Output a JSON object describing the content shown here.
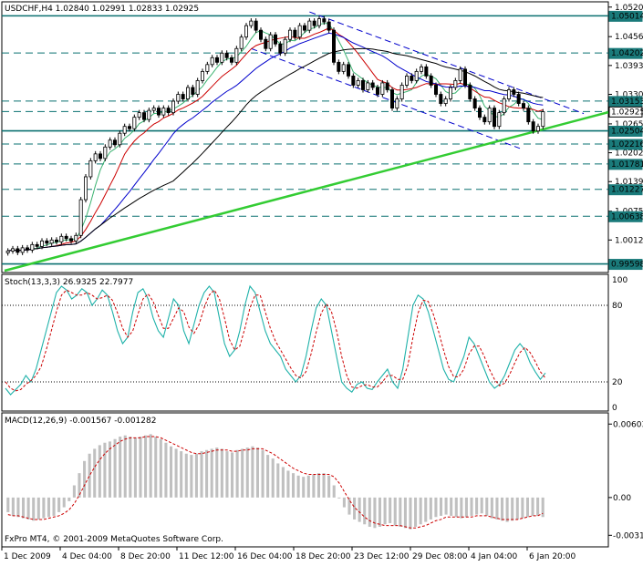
{
  "colors": {
    "background": "#ffffff",
    "grid": "#000000",
    "bull_body": "#ffffff",
    "bear_body": "#000000",
    "candle_outline": "#000000",
    "ma_fast": "#3cb371",
    "ma_mid": "#cc0000",
    "ma_slow": "#0000cc",
    "ma_long": "#000000",
    "support_line": "#33cc33",
    "level_line": "#0a7070",
    "channel_line": "#0000cc",
    "stoch_main": "#20b2aa",
    "stoch_signal": "#cc0000",
    "macd_hist": "#c0c0c0",
    "macd_signal": "#cc0000",
    "price_box_dark": "#1a7a7a",
    "price_box_current": "#ffffff"
  },
  "main_panel": {
    "header": "USDCHF,H4  1.02840 1.02991 1.02833 1.02925",
    "price_labels": [
      "1.05205",
      "1.04560",
      "1.03930",
      "1.03300",
      "1.02655",
      "1.02025",
      "1.01395",
      "1.00750",
      "1.00120"
    ],
    "level_boxes": [
      "1.05014",
      "1.04202",
      "1.03153",
      "1.02925",
      "1.02504",
      "1.02216",
      "1.01781",
      "1.01227",
      "1.00638",
      "0.99598"
    ],
    "current_price": "1.02925"
  },
  "stoch_panel": {
    "header": "Stoch(13,3,3) 26.9325 22.7977",
    "labels": [
      "100",
      "80",
      "20",
      "0"
    ]
  },
  "macd_panel": {
    "header": "MACD(12,26,9) -0.001567 -0.001282",
    "labels": [
      "0.00603",
      "0.00",
      "-0.00310"
    ]
  },
  "footer": {
    "copyright": "FxPro MT4, © 2001-2009 MetaQuotes Software Corp."
  },
  "time_labels": [
    "1 Dec 2009",
    "4 Dec 04:00",
    "8 Dec 20:00",
    "11 Dec 12:00",
    "16 Dec 04:00",
    "18 Dec 20:00",
    "23 Dec 12:00",
    "29 Dec 08:00",
    "4 Jan 04:00",
    "6 Jan 20:00"
  ],
  "chart_data": {
    "type": "candlestick",
    "symbol": "USDCHF",
    "timeframe": "H4",
    "ohlc_last": {
      "open": 1.0284,
      "high": 1.02991,
      "low": 1.02833,
      "close": 1.02925
    },
    "ylim": [
      0.9945,
      1.0528
    ],
    "closes": [
      0.9988,
      0.9993,
      0.9985,
      0.9995,
      0.999,
      1.0002,
      0.9998,
      1.001,
      1.0005,
      1.0012,
      1.0008,
      1.002,
      1.0015,
      1.001,
      1.0022,
      1.01,
      1.015,
      1.0185,
      1.02,
      1.019,
      1.0215,
      1.023,
      1.022,
      1.0245,
      1.026,
      1.0255,
      1.028,
      1.029,
      1.0275,
      1.0295,
      1.03,
      1.0285,
      1.03,
      1.029,
      1.0315,
      1.033,
      1.032,
      1.0345,
      1.033,
      1.036,
      1.038,
      1.0395,
      1.041,
      1.04,
      1.042,
      1.041,
      1.04,
      1.043,
      1.0455,
      1.048,
      1.049,
      1.047,
      1.045,
      1.043,
      1.046,
      1.044,
      1.042,
      1.045,
      1.047,
      1.0455,
      1.048,
      1.047,
      1.049,
      1.048,
      1.0495,
      1.0488,
      1.047,
      1.04,
      1.038,
      1.0395,
      1.037,
      1.035,
      1.036,
      1.034,
      1.0355,
      1.0345,
      1.033,
      1.0355,
      1.034,
      1.03,
      1.032,
      1.035,
      1.037,
      1.036,
      1.038,
      1.039,
      1.037,
      1.035,
      1.033,
      1.031,
      1.032,
      1.0345,
      1.036,
      1.0385,
      1.035,
      1.032,
      1.03,
      1.028,
      1.027,
      1.03,
      1.026,
      1.029,
      1.032,
      1.034,
      1.033,
      1.031,
      1.03,
      1.027,
      1.025,
      1.026,
      1.0292
    ],
    "stochastic": {
      "params": "13,3,3",
      "main": 26.9325,
      "signal": 22.7977,
      "levels": [
        80,
        20
      ],
      "ylim": [
        0,
        100
      ],
      "k_values": [
        15,
        10,
        14,
        18,
        25,
        20,
        30,
        45,
        60,
        75,
        90,
        95,
        92,
        85,
        88,
        93,
        90,
        80,
        85,
        92,
        88,
        75,
        60,
        50,
        55,
        75,
        90,
        93,
        85,
        70,
        60,
        55,
        70,
        85,
        80,
        60,
        50,
        65,
        80,
        90,
        95,
        90,
        70,
        50,
        40,
        45,
        60,
        80,
        95,
        90,
        75,
        60,
        50,
        45,
        40,
        30,
        25,
        20,
        25,
        40,
        60,
        78,
        85,
        80,
        60,
        40,
        20,
        15,
        12,
        18,
        20,
        15,
        14,
        20,
        25,
        30,
        20,
        15,
        30,
        55,
        80,
        88,
        85,
        75,
        60,
        45,
        30,
        22,
        20,
        30,
        40,
        55,
        50,
        40,
        30,
        20,
        15,
        18,
        25,
        35,
        45,
        50,
        45,
        35,
        28,
        22,
        27
      ],
      "d_values": [
        20,
        15,
        13,
        14,
        18,
        21,
        25,
        32,
        45,
        60,
        75,
        88,
        92,
        90,
        88,
        88,
        90,
        88,
        85,
        86,
        88,
        84,
        74,
        62,
        55,
        60,
        73,
        85,
        89,
        83,
        72,
        62,
        62,
        70,
        78,
        75,
        63,
        58,
        65,
        78,
        88,
        92,
        85,
        70,
        53,
        45,
        48,
        62,
        78,
        88,
        88,
        75,
        62,
        52,
        45,
        38,
        31,
        25,
        23,
        28,
        42,
        59,
        74,
        81,
        75,
        60,
        40,
        25,
        16,
        15,
        17,
        18,
        16,
        16,
        20,
        25,
        25,
        22,
        22,
        33,
        55,
        74,
        84,
        83,
        73,
        60,
        45,
        32,
        24,
        24,
        30,
        42,
        48,
        48,
        40,
        30,
        22,
        17,
        19,
        26,
        35,
        43,
        47,
        43,
        36,
        28,
        23
      ]
    },
    "macd": {
      "params": "12,26,9",
      "main": -0.001567,
      "signal": -0.001282,
      "ylim": [
        -0.0036,
        0.0062
      ],
      "histogram": [
        -0.0012,
        -0.0015,
        -0.0016,
        -0.0017,
        -0.0018,
        -0.0019,
        -0.0018,
        -0.0017,
        -0.0016,
        -0.0015,
        -0.0012,
        -0.0008,
        -0.0003,
        0.001,
        0.002,
        0.003,
        0.0036,
        0.004,
        0.0043,
        0.0045,
        0.0046,
        0.0048,
        0.005,
        0.0051,
        0.005,
        0.0049,
        0.005,
        0.0051,
        0.0052,
        0.005,
        0.0048,
        0.0045,
        0.0042,
        0.004,
        0.0038,
        0.0036,
        0.0035,
        0.0036,
        0.0038,
        0.0039,
        0.004,
        0.0041,
        0.004,
        0.0038,
        0.0037,
        0.0039,
        0.004,
        0.0041,
        0.0042,
        0.0041,
        0.0039,
        0.0035,
        0.0032,
        0.0028,
        0.0025,
        0.0022,
        0.002,
        0.0018,
        0.0017,
        0.0018,
        0.0019,
        0.002,
        0.002,
        0.0018,
        0.001,
        0.0,
        -0.0008,
        -0.0014,
        -0.0018,
        -0.002,
        -0.0022,
        -0.0024,
        -0.0025,
        -0.0024,
        -0.0022,
        -0.0021,
        -0.0023,
        -0.0024,
        -0.0025,
        -0.0026,
        -0.0024,
        -0.0022,
        -0.002,
        -0.0018,
        -0.0016,
        -0.0015,
        -0.0014,
        -0.0015,
        -0.0016,
        -0.0017,
        -0.0016,
        -0.0015,
        -0.0014,
        -0.0013,
        -0.0015,
        -0.0017,
        -0.0018,
        -0.0019,
        -0.002,
        -0.0019,
        -0.0018,
        -0.0017,
        -0.0016,
        -0.0015,
        -0.0015,
        -0.0016
      ],
      "signal_values": [
        -0.0014,
        -0.0015,
        -0.0015,
        -0.0016,
        -0.0017,
        -0.0018,
        -0.0018,
        -0.0018,
        -0.0017,
        -0.0016,
        -0.0015,
        -0.0013,
        -0.001,
        -0.0005,
        0.0002,
        0.001,
        0.0018,
        0.0025,
        0.0031,
        0.0036,
        0.004,
        0.0043,
        0.0046,
        0.0048,
        0.0049,
        0.0049,
        0.0049,
        0.005,
        0.005,
        0.005,
        0.0049,
        0.0047,
        0.0045,
        0.0043,
        0.0041,
        0.0039,
        0.0037,
        0.0036,
        0.0036,
        0.0037,
        0.0038,
        0.0039,
        0.0039,
        0.0039,
        0.0038,
        0.0038,
        0.0039,
        0.0039,
        0.004,
        0.004,
        0.004,
        0.0038,
        0.0036,
        0.0033,
        0.003,
        0.0027,
        0.0024,
        0.0022,
        0.002,
        0.0019,
        0.0019,
        0.0019,
        0.0019,
        0.0019,
        0.0017,
        0.0012,
        0.0005,
        -0.0002,
        -0.0008,
        -0.0012,
        -0.0016,
        -0.0019,
        -0.0021,
        -0.0022,
        -0.0023,
        -0.0023,
        -0.0023,
        -0.0023,
        -0.0024,
        -0.0025,
        -0.0025,
        -0.0024,
        -0.0023,
        -0.0021,
        -0.0019,
        -0.0018,
        -0.0016,
        -0.0016,
        -0.0016,
        -0.0016,
        -0.0016,
        -0.0016,
        -0.0015,
        -0.0015,
        -0.0015,
        -0.0016,
        -0.0017,
        -0.0018,
        -0.0018,
        -0.0018,
        -0.0018,
        -0.0017,
        -0.0016,
        -0.0015,
        -0.0015,
        -0.0013
      ]
    }
  }
}
